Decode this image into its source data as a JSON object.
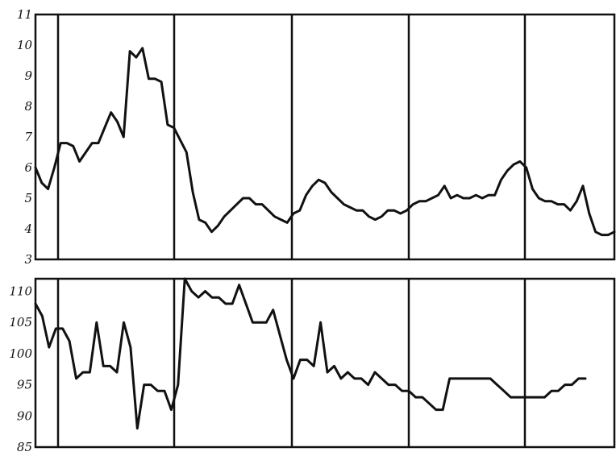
{
  "chart_data": [
    {
      "type": "line",
      "title": "",
      "xlabel": "",
      "ylabel": "",
      "ylim": [
        3,
        11
      ],
      "yticks": [
        "11",
        "10",
        "9",
        "8",
        "7",
        "6",
        "5",
        "4",
        "3"
      ],
      "grid": false,
      "x_divisions": 5,
      "series": [
        {
          "values": [
            6.0,
            5.5,
            5.3,
            6.0,
            6.8,
            6.8,
            6.7,
            6.2,
            6.5,
            6.8,
            6.8,
            7.3,
            7.8,
            7.5,
            7.0,
            9.8,
            9.6,
            9.9,
            8.9,
            8.9,
            8.8,
            7.4,
            7.3,
            6.9,
            6.5,
            5.2,
            4.3,
            4.2,
            3.9,
            4.1,
            4.4,
            4.6,
            4.8,
            5.0,
            5.0,
            4.8,
            4.8,
            4.6,
            4.4,
            4.3,
            4.2,
            4.5,
            4.6,
            5.1,
            5.4,
            5.6,
            5.5,
            5.2,
            5.0,
            4.8,
            4.7,
            4.6,
            4.6,
            4.4,
            4.3,
            4.4,
            4.6,
            4.6,
            4.5,
            4.6,
            4.8,
            4.9,
            4.9,
            5.0,
            5.1,
            5.4,
            5.0,
            5.1,
            5.0,
            5.0,
            5.1,
            5.0,
            5.1,
            5.1,
            5.6,
            5.9,
            6.1,
            6.2,
            6.0,
            5.3,
            5.0,
            4.9,
            4.9,
            4.8,
            4.8,
            4.6,
            4.9,
            5.4,
            4.5,
            3.9,
            3.8,
            3.8,
            3.9
          ]
        }
      ]
    },
    {
      "type": "line",
      "title": "",
      "xlabel": "",
      "ylabel": "",
      "ylim": [
        85,
        112
      ],
      "yticks": [
        "110",
        "105",
        "100",
        "95",
        "90",
        "85"
      ],
      "grid": false,
      "x_divisions": 5,
      "series": [
        {
          "values": [
            108,
            106,
            101,
            104,
            104,
            102,
            96,
            97,
            97,
            105,
            98,
            98,
            97,
            105,
            101,
            88,
            95,
            95,
            94,
            94,
            91,
            95,
            112,
            110,
            109,
            110,
            109,
            109,
            108,
            108,
            111,
            108,
            105,
            105,
            105,
            107,
            103,
            99,
            96,
            99,
            99,
            98,
            105,
            97,
            98,
            96,
            97,
            96,
            96,
            95,
            97,
            96,
            95,
            95,
            94,
            94,
            93,
            93,
            92,
            91,
            91,
            96,
            96,
            96,
            96,
            96,
            96,
            96,
            95,
            94,
            93,
            93,
            93,
            93,
            93,
            93,
            94,
            94,
            95,
            95,
            96,
            96
          ]
        }
      ]
    }
  ]
}
